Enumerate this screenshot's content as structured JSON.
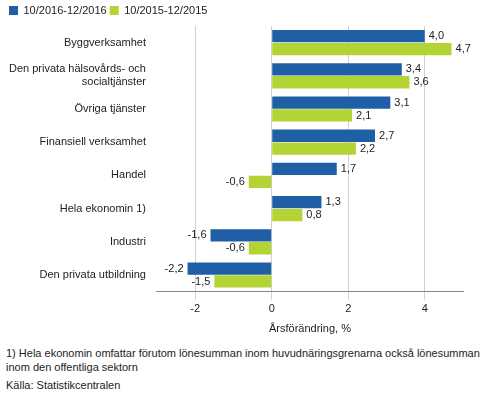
{
  "chart_data": {
    "type": "bar",
    "orientation": "horizontal",
    "categories": [
      "Byggverksamhet",
      [
        "Den privata hälsovårds- och",
        "socialtjänster"
      ],
      "Övriga tjänster",
      "Finansiell verksamhet",
      "Handel",
      "Hela ekonomin 1)",
      "Industri",
      "Den privata utbildning"
    ],
    "series": [
      {
        "name": "10/2016-12/2016",
        "color": "#1f5fa6",
        "values": [
          4.0,
          3.4,
          3.1,
          2.7,
          1.7,
          1.3,
          -1.6,
          -2.2
        ],
        "value_labels": [
          "4,0",
          "3,4",
          "3,1",
          "2,7",
          "1,7",
          "1,3",
          "-1,6",
          "-2,2"
        ]
      },
      {
        "name": "10/2015-12/2015",
        "color": "#b4d334",
        "values": [
          4.7,
          3.6,
          2.1,
          2.2,
          -0.6,
          0.8,
          -0.6,
          -1.5
        ],
        "value_labels": [
          "4,7",
          "3,6",
          "2,1",
          "2,2",
          "-0,6",
          "0,8",
          "-0,6",
          "-1,5"
        ]
      }
    ],
    "x_label": "Årsförändring, %",
    "xlim": [
      -3,
      5
    ],
    "xticks": [
      -2,
      0,
      2,
      4
    ],
    "grid": true,
    "legend": "top-left",
    "data_labels": true,
    "footnotes": [
      "1) Hela ekonomin omfattar förutom lönesumman inom huvudnäringsgrenarna också lönesumman inom den offentliga sektorn"
    ],
    "source": "Källa: Statistikcentralen"
  }
}
